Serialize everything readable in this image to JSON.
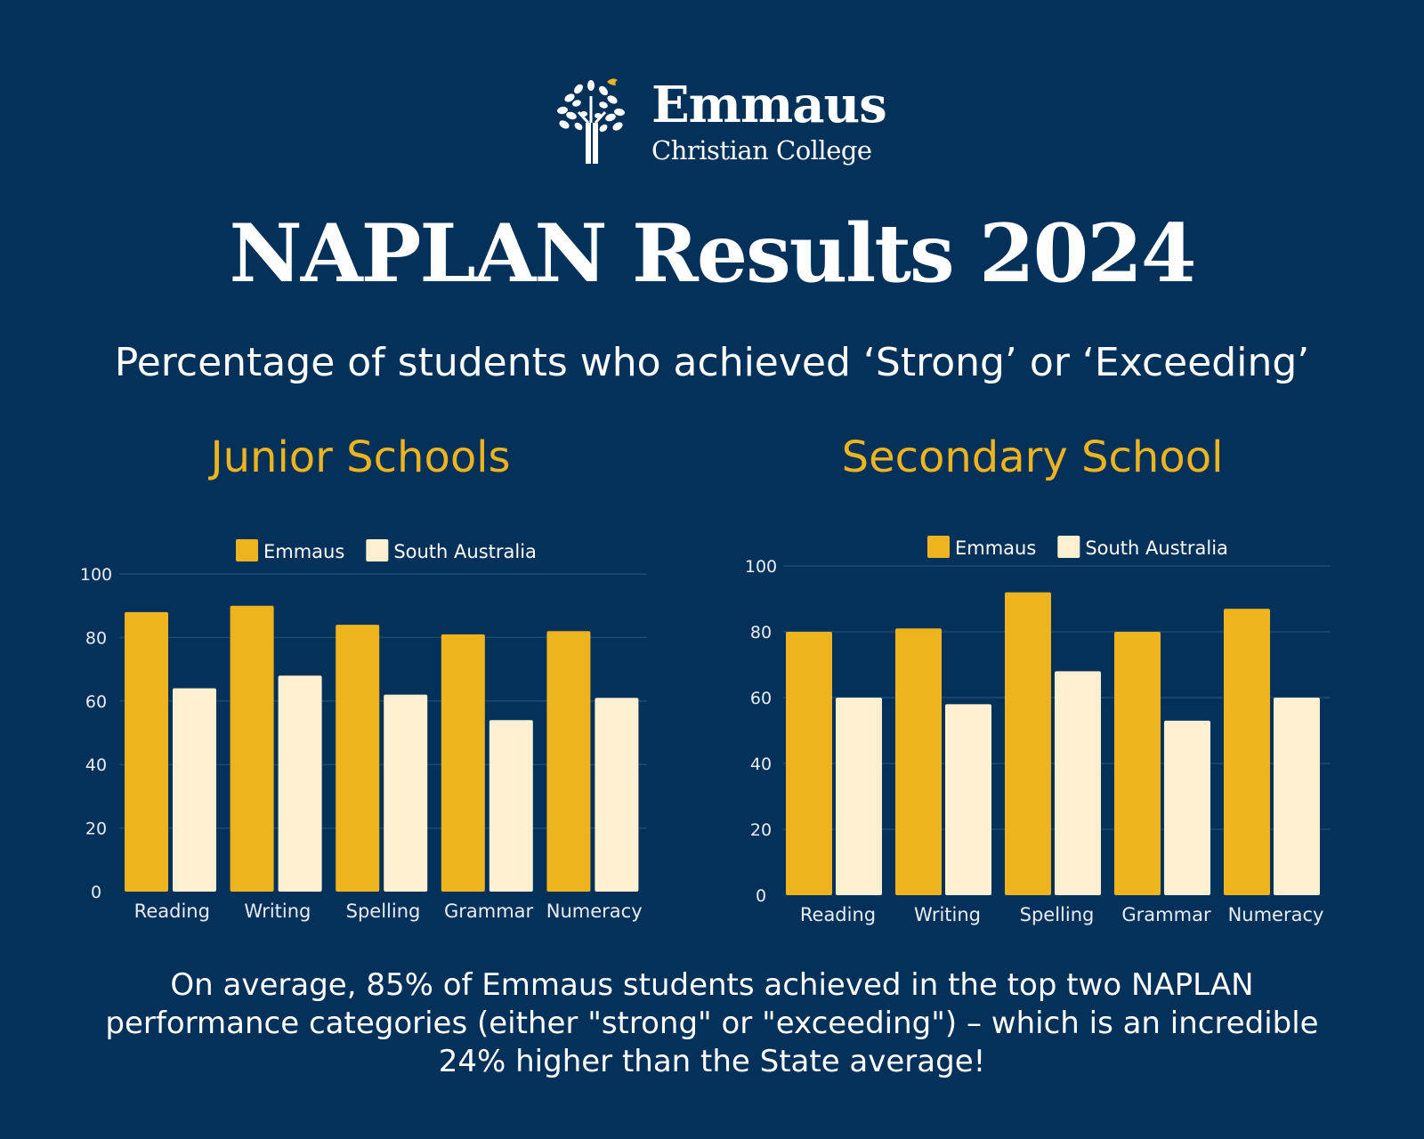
{
  "logo": {
    "name": "Emmaus",
    "subtitle": "Christian College",
    "icon": "tree-with-dove-icon"
  },
  "title": "NAPLAN Results 2024",
  "subtitle": "Percentage of students who achieved ‘Strong’ or ‘Exceeding’",
  "colors": {
    "background": "#03315a",
    "emmaus": "#eeb41d",
    "south_australia": "#fdf0d0",
    "accent_text": "#eeb41d"
  },
  "chart_data": [
    {
      "type": "bar",
      "title": "Junior Schools",
      "categories": [
        "Reading",
        "Writing",
        "Spelling",
        "Grammar",
        "Numeracy"
      ],
      "series": [
        {
          "name": "Emmaus",
          "values": [
            88,
            90,
            84,
            81,
            82
          ]
        },
        {
          "name": "South Australia",
          "values": [
            64,
            68,
            62,
            54,
            61
          ]
        }
      ],
      "ylim": [
        0,
        100
      ],
      "yticks": [
        0,
        20,
        40,
        60,
        80,
        100
      ],
      "xlabel": "",
      "ylabel": "",
      "legend": "top-center",
      "grid": true
    },
    {
      "type": "bar",
      "title": "Secondary School",
      "categories": [
        "Reading",
        "Writing",
        "Spelling",
        "Grammar",
        "Numeracy"
      ],
      "series": [
        {
          "name": "Emmaus",
          "values": [
            80,
            81,
            92,
            80,
            87
          ]
        },
        {
          "name": "South Australia",
          "values": [
            60,
            58,
            68,
            53,
            60
          ]
        }
      ],
      "ylim": [
        0,
        100
      ],
      "yticks": [
        0,
        20,
        40,
        60,
        80,
        100
      ],
      "xlabel": "",
      "ylabel": "",
      "legend": "top-center",
      "grid": true
    }
  ],
  "footnote": "On average, 85% of Emmaus students achieved in the top two NAPLAN performance categories (either \"strong\" or \"exceeding\") – which is an incredible 24% higher than the State average!"
}
